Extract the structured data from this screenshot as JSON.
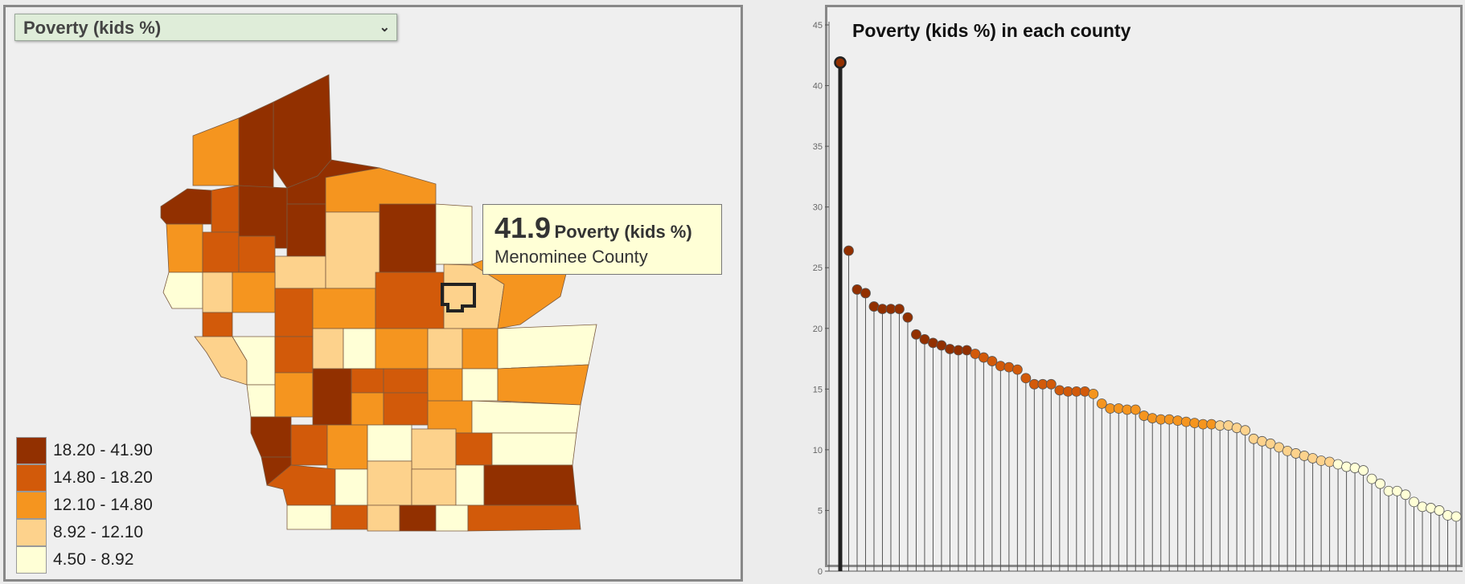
{
  "dropdown": {
    "selected": "Poverty (kids %)",
    "chevron": "chevron-down-icon"
  },
  "tooltip": {
    "value": "41.9",
    "label": "Poverty (kids %)",
    "county": "Menominee County"
  },
  "legend": [
    {
      "label": "18.20 - 41.90",
      "color": "#923000"
    },
    {
      "label": "14.80 - 18.20",
      "color": "#d25a0a"
    },
    {
      "label": "12.10 - 14.80",
      "color": "#f5951f"
    },
    {
      "label": "8.92 - 12.10",
      "color": "#fdd28c"
    },
    {
      "label": "4.50 - 8.92",
      "color": "#ffffd6"
    }
  ],
  "chart_data": {
    "type": "scatter",
    "title": "Poverty (kids %) in each county",
    "xlabel": "",
    "ylabel": "",
    "ylim": [
      0,
      45
    ],
    "yticks": [
      0,
      5,
      10,
      15,
      20,
      25,
      30,
      35,
      40,
      45
    ],
    "grid": false,
    "highlighted": "Menominee County",
    "values": [
      41.9,
      26.4,
      23.2,
      22.9,
      21.8,
      21.6,
      21.6,
      21.6,
      20.9,
      19.5,
      19.1,
      18.8,
      18.6,
      18.3,
      18.2,
      18.2,
      17.9,
      17.6,
      17.3,
      16.9,
      16.8,
      16.6,
      15.9,
      15.4,
      15.4,
      15.4,
      14.9,
      14.8,
      14.8,
      14.8,
      14.6,
      13.8,
      13.4,
      13.4,
      13.3,
      13.3,
      12.8,
      12.6,
      12.5,
      12.5,
      12.4,
      12.3,
      12.2,
      12.1,
      12.1,
      12.0,
      12.0,
      11.8,
      11.6,
      10.9,
      10.7,
      10.5,
      10.2,
      9.9,
      9.7,
      9.5,
      9.3,
      9.1,
      9.0,
      8.8,
      8.6,
      8.5,
      8.3,
      7.6,
      7.2,
      6.6,
      6.6,
      6.3,
      5.7,
      5.3,
      5.2,
      5.0,
      4.6,
      4.5
    ]
  }
}
